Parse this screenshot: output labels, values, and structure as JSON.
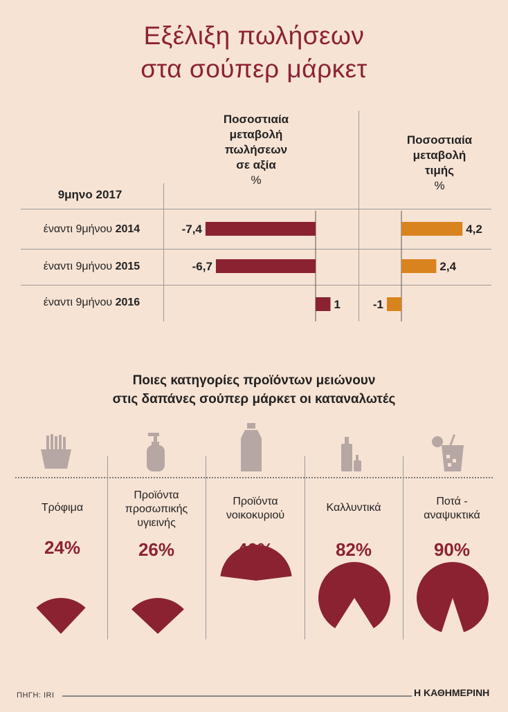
{
  "title_lines": [
    "Εξέλιξη πωλήσεων",
    "στα σούπερ μάρκετ"
  ],
  "header_sales": [
    "Ποσοστιαία",
    "μεταβολή",
    "πωλήσεων",
    "σε αξία"
  ],
  "header_price": [
    "Ποσοστιαία",
    "μεταβολή",
    "τιμής"
  ],
  "header_unit": "%",
  "period_label": "9μηνο 2017",
  "row_prefix": "έναντι 9μήνου",
  "chart_data": [
    {
      "type": "bar",
      "orientation": "horizontal",
      "categories": [
        "2014",
        "2015",
        "2016"
      ],
      "series": [
        {
          "name": "Ποσοστιαία μεταβολή πωλήσεων σε αξία",
          "values": [
            -7.4,
            -6.7,
            1
          ],
          "labels": [
            "-7,4",
            "-6,7",
            "1"
          ],
          "color": "#8b2232"
        },
        {
          "name": "Ποσοστιαία μεταβολή τιμής",
          "values": [
            4.2,
            2.4,
            -1
          ],
          "labels": [
            "4,2",
            "2,4",
            "-1"
          ],
          "color": "#d9831e"
        }
      ]
    },
    {
      "type": "pie",
      "title": "Ποιες κατηγορίες προϊόντων μειώνουν στις δαπάνες σούπερ μάρκετ οι καταναλωτές",
      "categories": [
        "Τρόφιμα",
        "Προϊόντα προσωπικής υγιεινής",
        "Προϊόντα νοικοκυριού",
        "Καλλυντικά",
        "Ποτά - αναψυκτικά"
      ],
      "values": [
        24,
        26,
        46,
        82,
        90
      ],
      "value_labels": [
        "24%",
        "26%",
        "46%",
        "82%",
        "90%"
      ],
      "color": "#8b2232"
    }
  ],
  "subtitle_lines": [
    "Ποιες κατηγορίες προϊόντων μειώνουν",
    "στις δαπάνες σούπερ μάρκετ οι καταναλωτές"
  ],
  "category_lines": [
    [
      "Τρόφιμα"
    ],
    [
      "Προϊόντα",
      "προσωπικής",
      "υγιεινής"
    ],
    [
      "Προϊόντα",
      "νοικοκυριού"
    ],
    [
      "Καλλυντικά"
    ],
    [
      "Ποτά -",
      "αναψυκτικά"
    ]
  ],
  "icons": [
    "fries-icon",
    "soap-dispenser-icon",
    "detergent-bottle-icon",
    "cosmetics-bottles-icon",
    "drink-glass-icon"
  ],
  "source": "ΠΗΓΗ: IRI",
  "publisher": "Η ΚΑΘΗΜΕΡΙΝΗ"
}
